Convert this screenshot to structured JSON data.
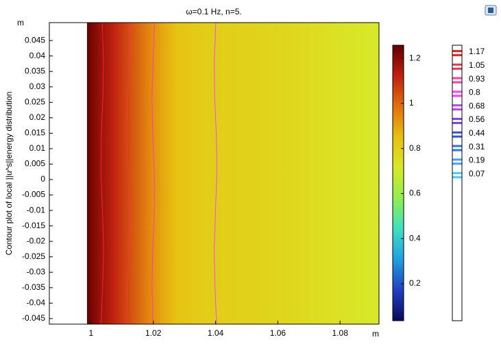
{
  "chart_data": {
    "type": "heatmap",
    "title": "ω=0.1 Hz, n=5.",
    "y_label": "Contour plot of local ||u^s||energy distribution",
    "x_unit": "m",
    "y_unit": "m",
    "x": [
      0.9987,
      1.0,
      1.005,
      1.01,
      1.015,
      1.02,
      1.025,
      1.03,
      1.04,
      1.05,
      1.06,
      1.07,
      1.08,
      1.0925
    ],
    "values": [
      1.26,
      1.22,
      1.15,
      1.08,
      1.0,
      0.93,
      0.86,
      0.82,
      0.8,
      0.79,
      0.78,
      0.76,
      0.73,
      0.71
    ],
    "xlim": [
      0.9866,
      1.0925
    ],
    "xticks": [
      1,
      1.02,
      1.04,
      1.06,
      1.08
    ],
    "ylim": [
      -0.0468,
      0.0508
    ],
    "yticks": [
      0.045,
      0.04,
      0.035,
      0.03,
      0.025,
      0.02,
      0.015,
      0.01,
      0.005,
      0,
      -0.005,
      -0.01,
      -0.015,
      -0.02,
      -0.025,
      -0.03,
      -0.035,
      -0.04,
      -0.045
    ],
    "colorbar": {
      "lim": [
        0.036,
        1.258
      ],
      "ticks": [
        0.2,
        0.4,
        0.6,
        0.8,
        1,
        1.2
      ],
      "colors": [
        "#0a0a5a",
        "#2040c0",
        "#20a0e0",
        "#40e0c0",
        "#90ee50",
        "#d8e828",
        "#e8c010",
        "#e07010",
        "#c02010",
        "#600000"
      ]
    },
    "contour": {
      "levels": [
        1.17,
        1.05,
        0.93,
        0.8,
        0.68,
        0.56,
        0.44,
        0.31,
        0.19,
        0.07
      ],
      "colors": [
        "#ff2020",
        "#ff3050",
        "#ff40a0",
        "#ff40ff",
        "#c040ff",
        "#8040ff",
        "#3050ff",
        "#3070ff",
        "#40a0ff",
        "#40d0ff"
      ]
    }
  }
}
